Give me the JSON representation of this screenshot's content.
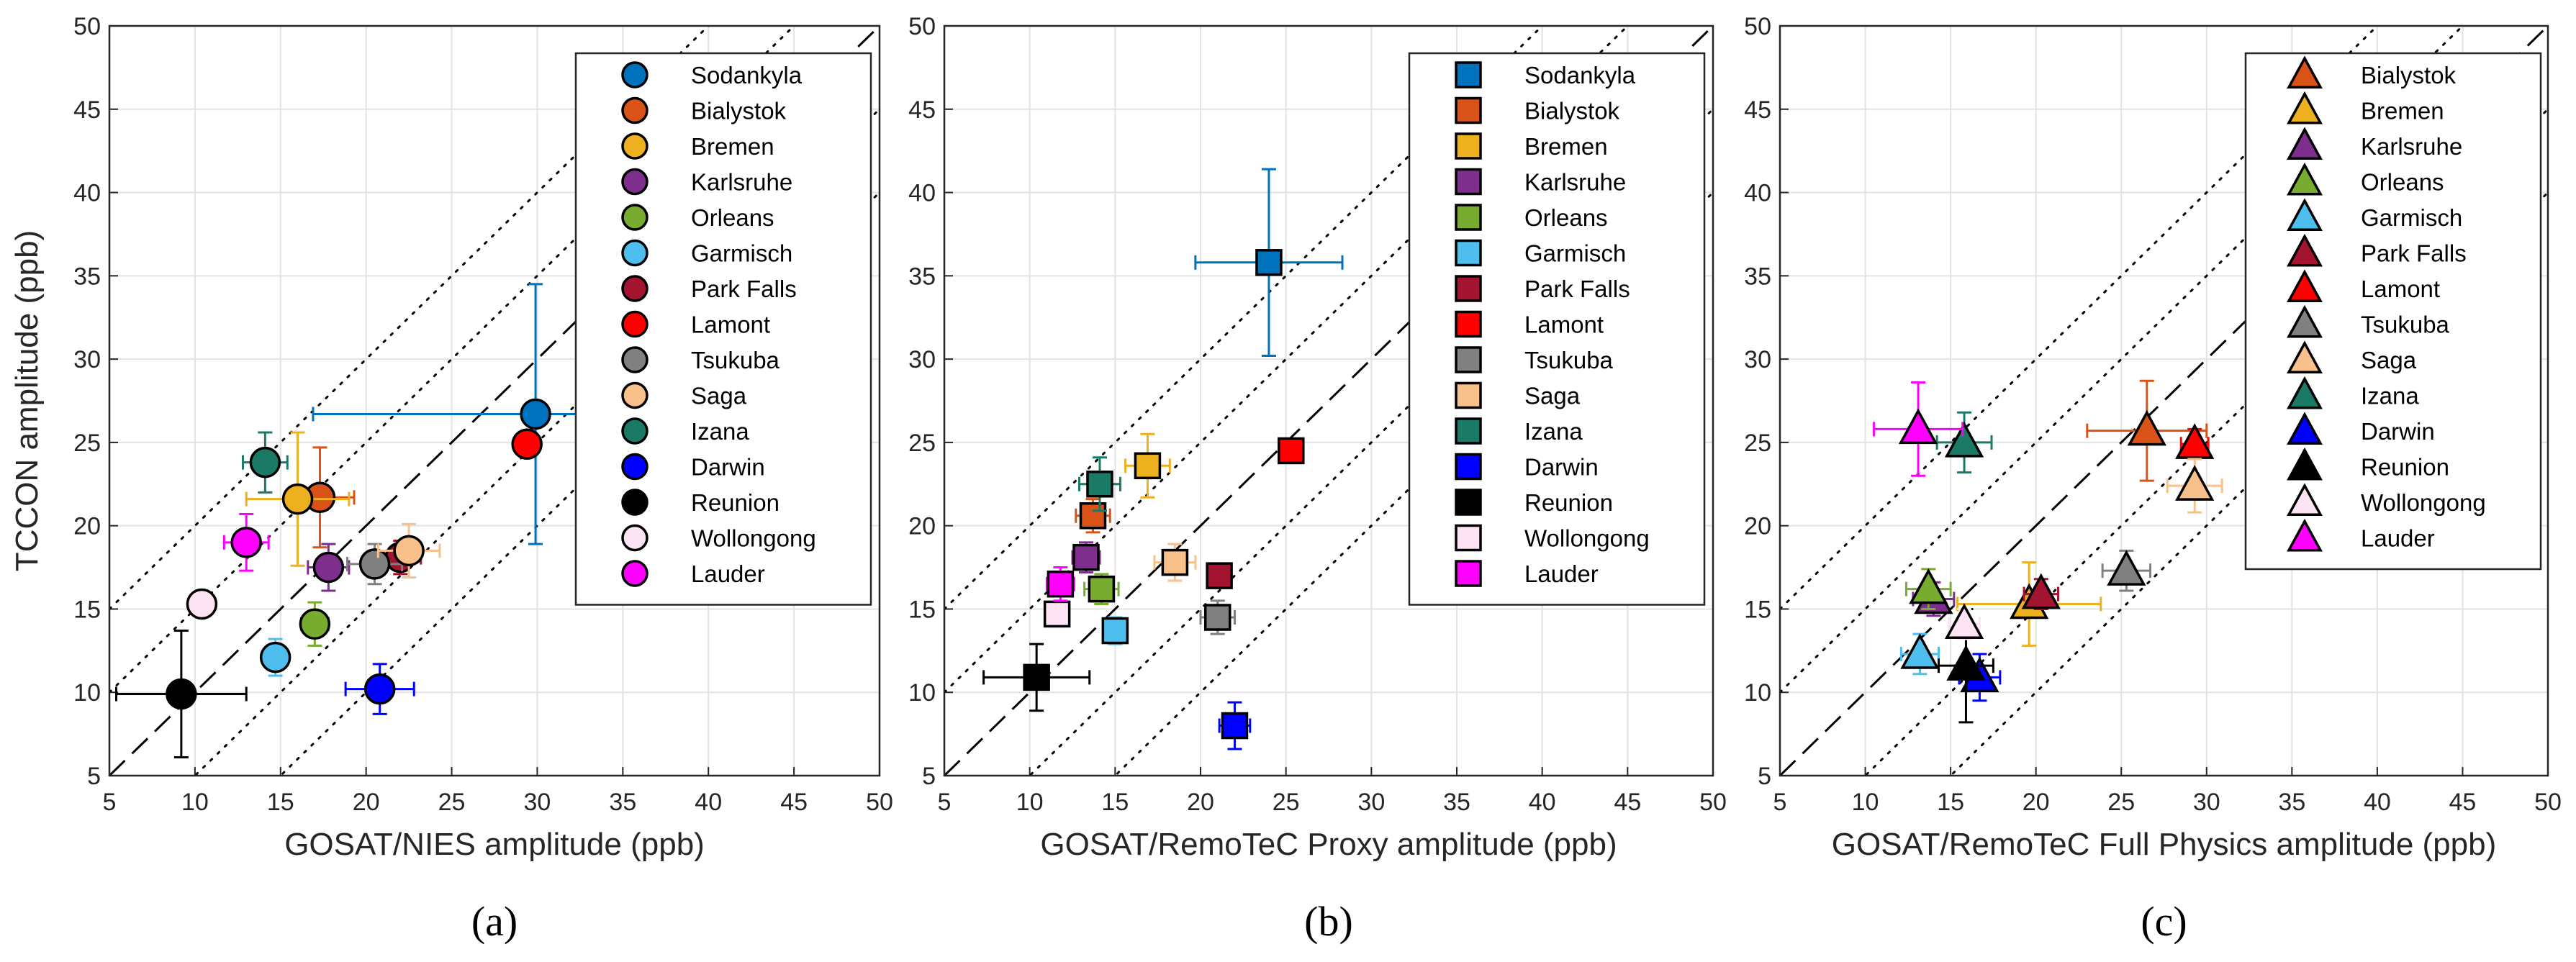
{
  "chart_data": [
    {
      "type": "scatter",
      "panel_label": "(a)",
      "marker": "circle",
      "xlabel": "GOSAT/NIES amplitude (ppb)",
      "ylabel": "TCCON amplitude (ppb)",
      "xlim": [
        5,
        50
      ],
      "ylim": [
        5,
        50
      ],
      "ticks": [
        "5",
        "10",
        "15",
        "20",
        "25",
        "30",
        "35",
        "40",
        "45",
        "50"
      ],
      "grid": true,
      "reference_lines": {
        "one_to_one": "dashed",
        "offsets": [
          -10,
          -5,
          5,
          10
        ]
      },
      "legend_position": "top-right",
      "series": [
        {
          "name": "Sodankyla",
          "color": "#0072BD",
          "x": 29.9,
          "y": 26.7,
          "xerr": 13.0,
          "yerr": 7.8
        },
        {
          "name": "Bialystok",
          "color": "#D95319",
          "x": 17.3,
          "y": 21.7,
          "xerr": 2.0,
          "yerr": 3.0
        },
        {
          "name": "Bremen",
          "color": "#EDB120",
          "x": 16.0,
          "y": 21.6,
          "xerr": 3.0,
          "yerr": 4.0
        },
        {
          "name": "Karlsruhe",
          "color": "#7E2F8E",
          "x": 17.8,
          "y": 17.5,
          "xerr": 1.2,
          "yerr": 1.4
        },
        {
          "name": "Orleans",
          "color": "#77AC30",
          "x": 17.0,
          "y": 14.1,
          "xerr": 0.8,
          "yerr": 1.3
        },
        {
          "name": "Garmisch",
          "color": "#4DBEEE",
          "x": 14.7,
          "y": 12.1,
          "xerr": 0.7,
          "yerr": 1.1
        },
        {
          "name": "Park Falls",
          "color": "#A2142F",
          "x": 22.0,
          "y": 18.1,
          "xerr": 1.2,
          "yerr": 1.0
        },
        {
          "name": "Lamont",
          "color": "#FF0000",
          "x": 29.4,
          "y": 24.9,
          "xerr": 0.6,
          "yerr": 0.6
        },
        {
          "name": "Tsukuba",
          "color": "#808080",
          "x": 20.5,
          "y": 17.7,
          "xerr": 1.6,
          "yerr": 1.2
        },
        {
          "name": "Saga",
          "color": "#F8C08A",
          "x": 22.5,
          "y": 18.5,
          "xerr": 1.8,
          "yerr": 1.6
        },
        {
          "name": "Izana",
          "color": "#1A7A66",
          "x": 14.1,
          "y": 23.8,
          "xerr": 1.3,
          "yerr": 1.8
        },
        {
          "name": "Darwin",
          "color": "#0000FF",
          "x": 20.8,
          "y": 10.2,
          "xerr": 2.0,
          "yerr": 1.5
        },
        {
          "name": "Reunion",
          "color": "#000000",
          "x": 9.2,
          "y": 9.9,
          "xerr": 3.8,
          "yerr": 3.8
        },
        {
          "name": "Wollongong",
          "color": "#FCE4F5",
          "x": 10.4,
          "y": 15.3,
          "xerr": 0.8,
          "yerr": 0.8
        },
        {
          "name": "Lauder",
          "color": "#FF00FF",
          "x": 13.0,
          "y": 19.0,
          "xerr": 1.3,
          "yerr": 1.7
        }
      ]
    },
    {
      "type": "scatter",
      "panel_label": "(b)",
      "marker": "square",
      "xlabel": "GOSAT/RemoTeC Proxy amplitude (ppb)",
      "ylabel": "",
      "xlim": [
        5,
        50
      ],
      "ylim": [
        5,
        50
      ],
      "ticks": [
        "5",
        "10",
        "15",
        "20",
        "25",
        "30",
        "35",
        "40",
        "45",
        "50"
      ],
      "grid": true,
      "reference_lines": {
        "one_to_one": "dashed",
        "offsets": [
          -10,
          -5,
          5,
          10
        ]
      },
      "legend_position": "top-right",
      "series": [
        {
          "name": "Sodankyla",
          "color": "#0072BD",
          "x": 24.0,
          "y": 35.8,
          "xerr": 4.3,
          "yerr": 5.6
        },
        {
          "name": "Bialystok",
          "color": "#D95319",
          "x": 13.7,
          "y": 20.6,
          "xerr": 1.0,
          "yerr": 1.0
        },
        {
          "name": "Bremen",
          "color": "#EDB120",
          "x": 16.9,
          "y": 23.6,
          "xerr": 1.3,
          "yerr": 1.9
        },
        {
          "name": "Karlsruhe",
          "color": "#7E2F8E",
          "x": 13.3,
          "y": 18.1,
          "xerr": 0.8,
          "yerr": 0.9
        },
        {
          "name": "Orleans",
          "color": "#77AC30",
          "x": 14.2,
          "y": 16.2,
          "xerr": 1.0,
          "yerr": 0.9
        },
        {
          "name": "Garmisch",
          "color": "#4DBEEE",
          "x": 15.0,
          "y": 13.7,
          "xerr": 0.7,
          "yerr": 0.8
        },
        {
          "name": "Park Falls",
          "color": "#A2142F",
          "x": 21.1,
          "y": 17.0,
          "xerr": 0.7,
          "yerr": 0.6
        },
        {
          "name": "Lamont",
          "color": "#FF0000",
          "x": 25.3,
          "y": 24.5,
          "xerr": 0.6,
          "yerr": 0.6
        },
        {
          "name": "Tsukuba",
          "color": "#808080",
          "x": 21.0,
          "y": 14.5,
          "xerr": 1.0,
          "yerr": 1.0
        },
        {
          "name": "Saga",
          "color": "#F8C08A",
          "x": 18.5,
          "y": 17.8,
          "xerr": 1.2,
          "yerr": 1.1
        },
        {
          "name": "Izana",
          "color": "#1A7A66",
          "x": 14.1,
          "y": 22.5,
          "xerr": 1.2,
          "yerr": 1.6
        },
        {
          "name": "Darwin",
          "color": "#0000FF",
          "x": 22.0,
          "y": 8.0,
          "xerr": 0.9,
          "yerr": 1.4
        },
        {
          "name": "Reunion",
          "color": "#000000",
          "x": 10.4,
          "y": 10.9,
          "xerr": 3.1,
          "yerr": 2.0
        },
        {
          "name": "Wollongong",
          "color": "#FCE4F5",
          "x": 11.6,
          "y": 14.7,
          "xerr": 0.6,
          "yerr": 0.6
        },
        {
          "name": "Lauder",
          "color": "#FF00FF",
          "x": 11.8,
          "y": 16.5,
          "xerr": 0.8,
          "yerr": 1.0
        }
      ]
    },
    {
      "type": "scatter",
      "panel_label": "(c)",
      "marker": "triangle",
      "xlabel": "GOSAT/RemoTeC Full Physics amplitude (ppb)",
      "ylabel": "",
      "xlim": [
        5,
        50
      ],
      "ylim": [
        5,
        50
      ],
      "ticks": [
        "5",
        "10",
        "15",
        "20",
        "25",
        "30",
        "35",
        "40",
        "45",
        "50"
      ],
      "grid": true,
      "reference_lines": {
        "one_to_one": "dashed",
        "offsets": [
          -10,
          -5,
          5,
          10
        ]
      },
      "legend_position": "top-right",
      "series": [
        {
          "name": "Bialystok",
          "color": "#D95319",
          "x": 26.5,
          "y": 25.7,
          "xerr": 3.5,
          "yerr": 3.0
        },
        {
          "name": "Bremen",
          "color": "#EDB120",
          "x": 19.6,
          "y": 15.3,
          "xerr": 4.2,
          "yerr": 2.5
        },
        {
          "name": "Karlsruhe",
          "color": "#7E2F8E",
          "x": 14.0,
          "y": 15.6,
          "xerr": 1.2,
          "yerr": 1.0
        },
        {
          "name": "Orleans",
          "color": "#77AC30",
          "x": 13.7,
          "y": 16.2,
          "xerr": 1.3,
          "yerr": 1.2
        },
        {
          "name": "Garmisch",
          "color": "#4DBEEE",
          "x": 13.2,
          "y": 12.3,
          "xerr": 1.1,
          "yerr": 1.2
        },
        {
          "name": "Park Falls",
          "color": "#A2142F",
          "x": 20.3,
          "y": 15.9,
          "xerr": 1.0,
          "yerr": 0.9
        },
        {
          "name": "Lamont",
          "color": "#FF0000",
          "x": 29.3,
          "y": 24.9,
          "xerr": 0.8,
          "yerr": 0.9
        },
        {
          "name": "Tsukuba",
          "color": "#808080",
          "x": 25.3,
          "y": 17.3,
          "xerr": 1.4,
          "yerr": 1.2
        },
        {
          "name": "Saga",
          "color": "#F8C08A",
          "x": 29.3,
          "y": 22.4,
          "xerr": 1.6,
          "yerr": 1.6
        },
        {
          "name": "Izana",
          "color": "#1A7A66",
          "x": 15.8,
          "y": 25.0,
          "xerr": 1.6,
          "yerr": 1.8
        },
        {
          "name": "Darwin",
          "color": "#0000FF",
          "x": 16.7,
          "y": 10.9,
          "xerr": 1.2,
          "yerr": 1.4
        },
        {
          "name": "Reunion",
          "color": "#000000",
          "x": 15.9,
          "y": 11.6,
          "xerr": 1.6,
          "yerr": 3.4
        },
        {
          "name": "Wollongong",
          "color": "#FCE4F5",
          "x": 15.8,
          "y": 14.1,
          "xerr": 0.9,
          "yerr": 0.9
        },
        {
          "name": "Lauder",
          "color": "#FF00FF",
          "x": 13.1,
          "y": 25.8,
          "xerr": 2.6,
          "yerr": 2.8
        }
      ]
    }
  ]
}
